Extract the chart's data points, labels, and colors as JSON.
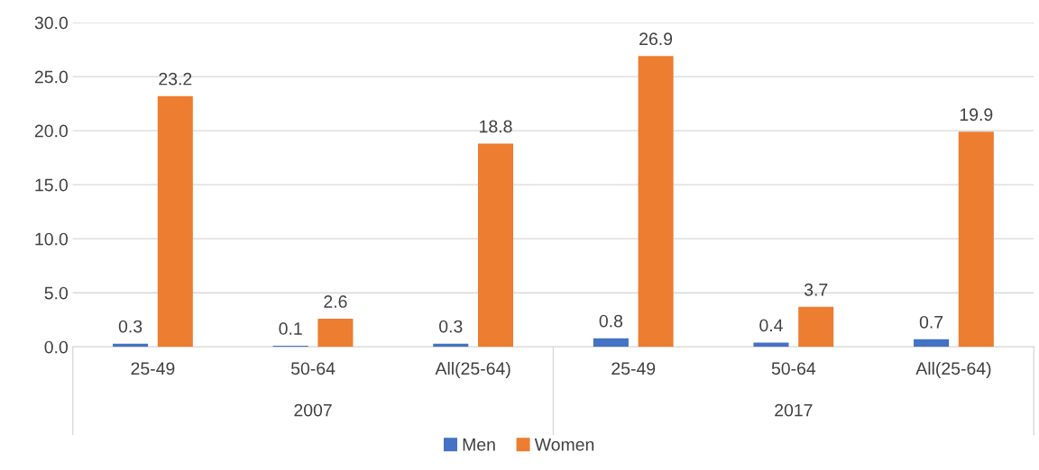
{
  "chart_data": {
    "type": "bar",
    "categories": [
      "25-49",
      "50-64",
      "All(25-64)",
      "25-49",
      "50-64",
      "All(25-64)"
    ],
    "series": [
      {
        "name": "Men",
        "color": "#4472c4",
        "values": [
          0.3,
          0.1,
          0.3,
          0.8,
          0.4,
          0.7
        ]
      },
      {
        "name": "Women",
        "color": "#ed7d31",
        "values": [
          23.2,
          2.6,
          18.8,
          26.9,
          3.7,
          19.9
        ]
      }
    ],
    "annotations": [
      "2007",
      "2017"
    ],
    "ylim": [
      0,
      30
    ],
    "yticks": [
      {
        "value": 0,
        "label": "0.0"
      },
      {
        "value": 5,
        "label": "5.0"
      },
      {
        "value": 10,
        "label": "10.0"
      },
      {
        "value": 15,
        "label": "15.0"
      },
      {
        "value": 20,
        "label": "20.0"
      },
      {
        "value": 25,
        "label": "25.0"
      },
      {
        "value": 30,
        "label": "30.0"
      }
    ],
    "grid": "y",
    "legend": "bottom",
    "data_labels": true
  }
}
